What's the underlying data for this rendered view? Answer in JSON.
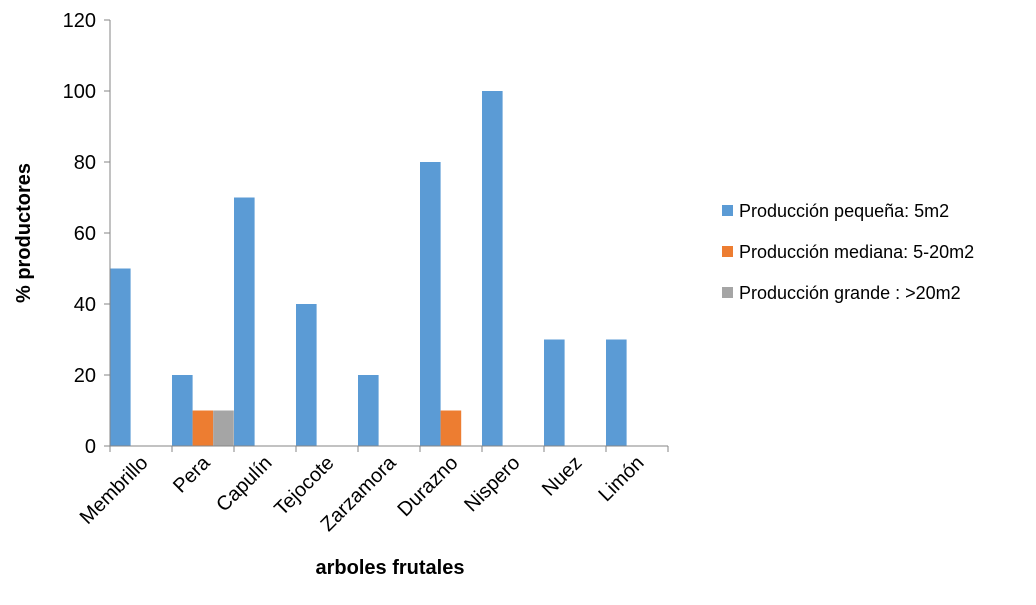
{
  "chart_data": {
    "type": "bar",
    "xlabel": "arboles frutales",
    "ylabel": "% productores",
    "ylim": [
      0,
      120
    ],
    "yticks": [
      0,
      20,
      40,
      60,
      80,
      100,
      120
    ],
    "grid": false,
    "legend_position": "right",
    "categories": [
      "Membrillo",
      "Pera",
      "Capulín",
      "Tejocote",
      "Zarzamora",
      "Durazno",
      "Nispero",
      "Nuez",
      "Limón"
    ],
    "series": [
      {
        "name": "Producción pequeña: 5m2",
        "color": "#5B9BD5",
        "values": [
          50,
          20,
          70,
          40,
          20,
          80,
          100,
          30,
          30
        ]
      },
      {
        "name": "Producción mediana: 5-20m2",
        "color": "#ED7D31",
        "values": [
          0,
          10,
          0,
          0,
          0,
          10,
          0,
          0,
          0
        ]
      },
      {
        "name": "Producción grande : >20m2",
        "color": "#A5A5A5",
        "values": [
          0,
          10,
          0,
          0,
          0,
          0,
          0,
          0,
          0
        ]
      }
    ]
  }
}
